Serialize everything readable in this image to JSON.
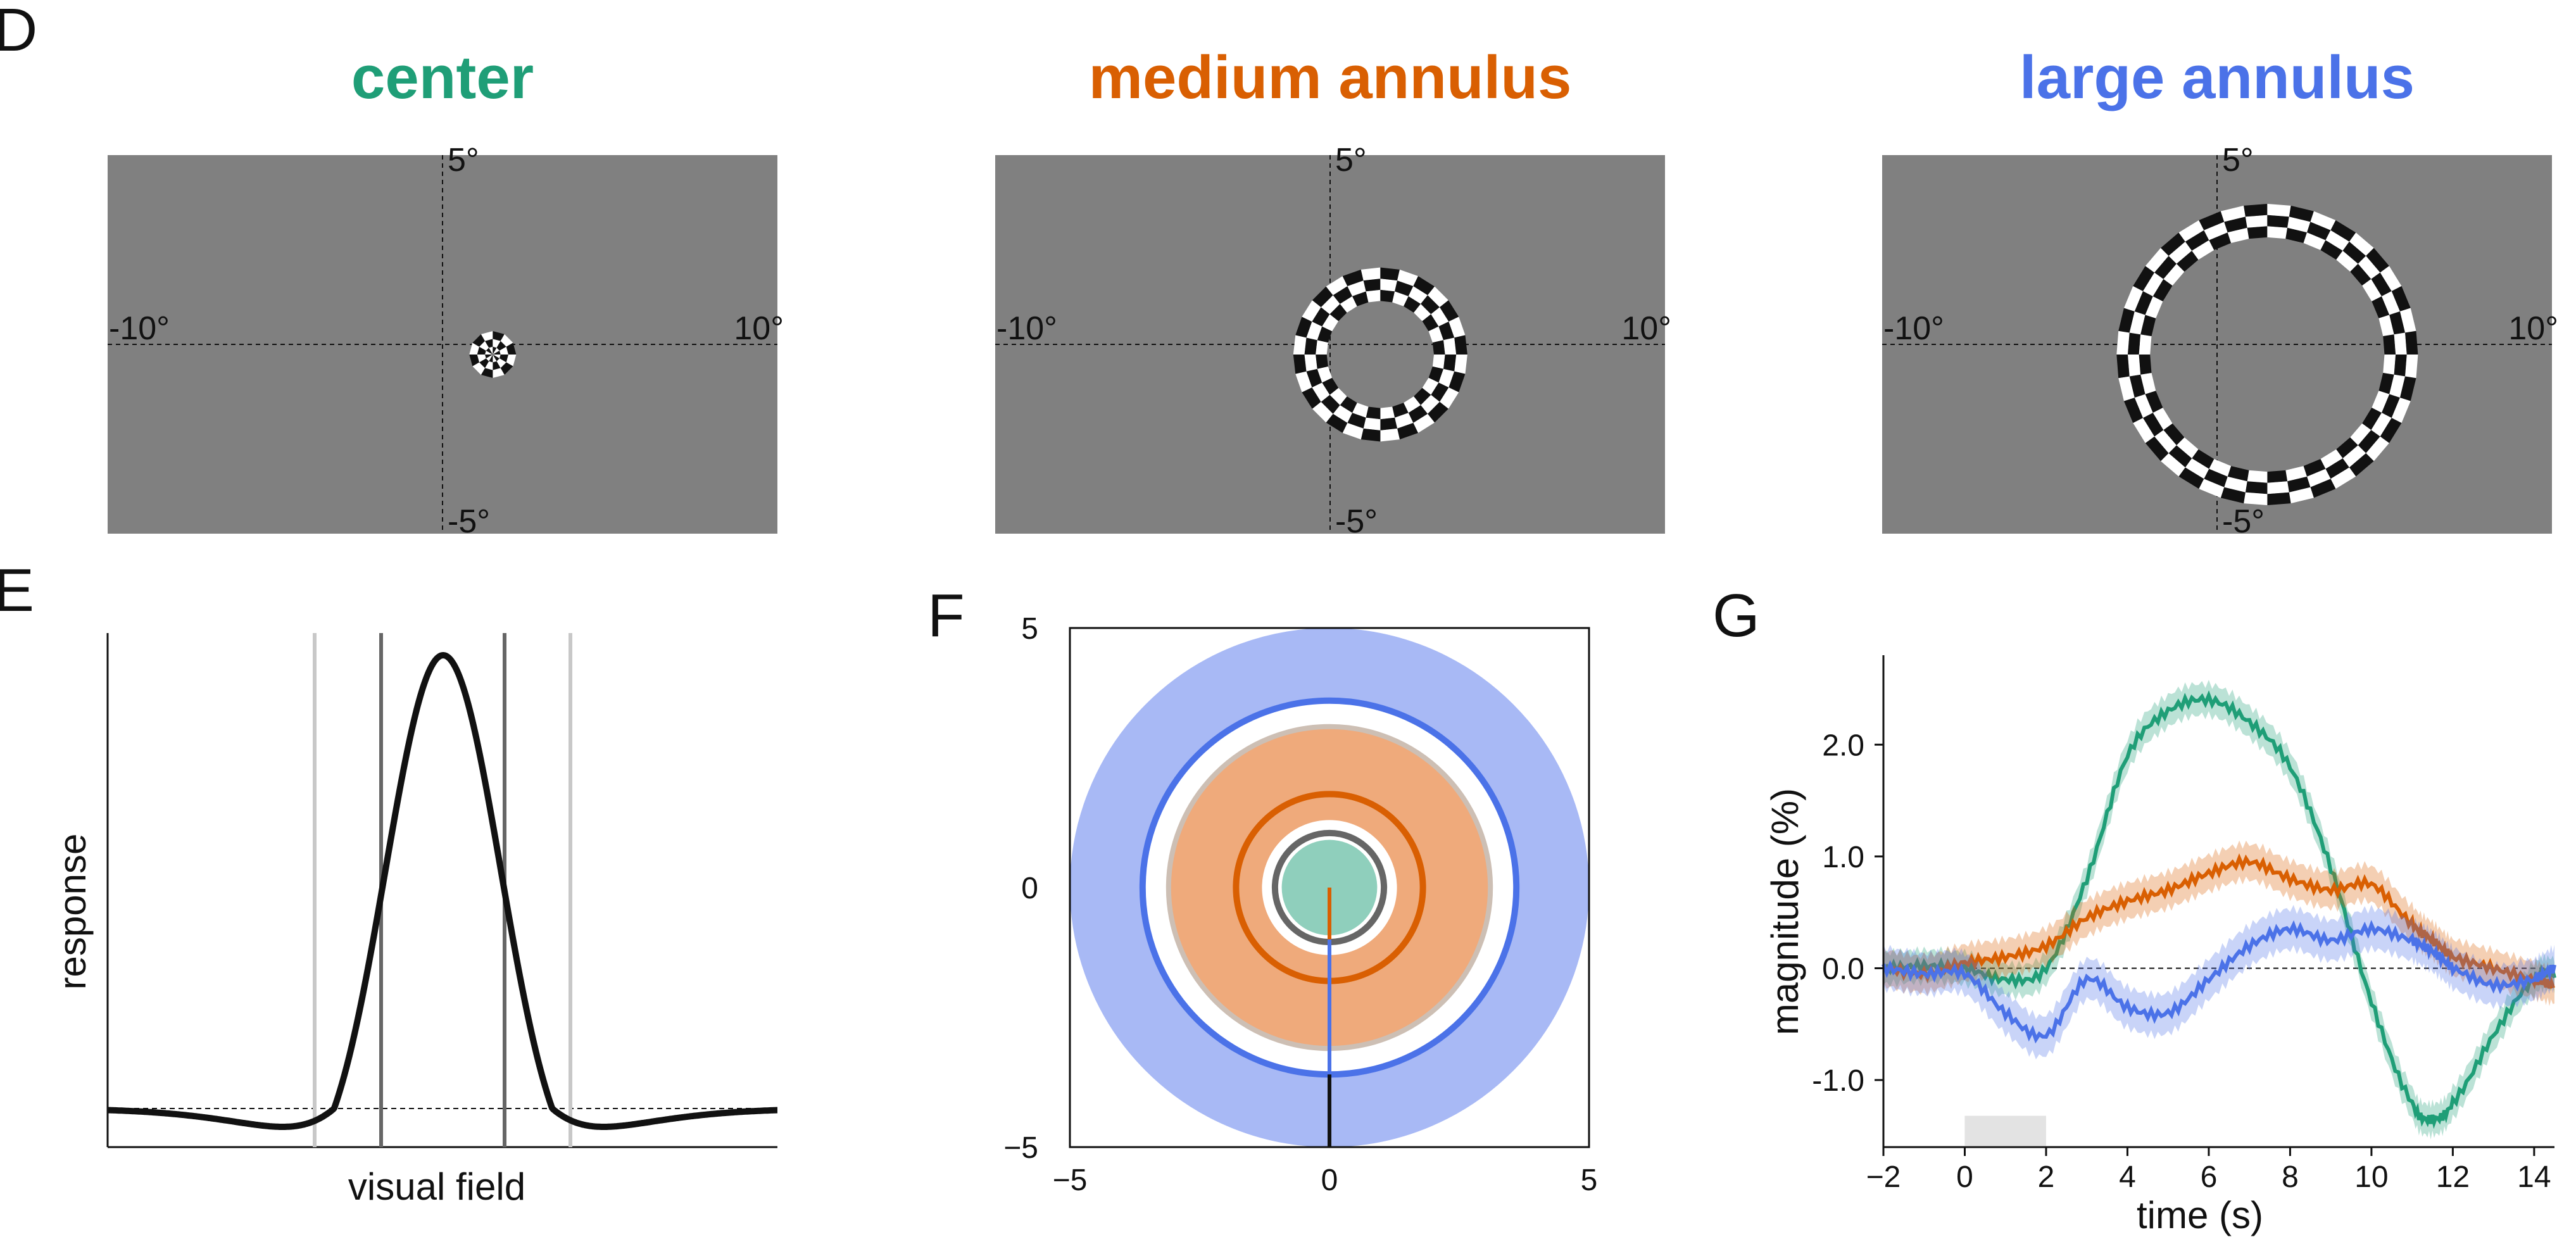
{
  "panels": {
    "D": {
      "letter": "D",
      "stimuli": [
        {
          "title": "center",
          "color": "#1f9e77",
          "inner_deg": 0.0,
          "outer_deg": 0.7
        },
        {
          "title": "medium annulus",
          "color": "#d95f02",
          "inner_deg": 1.6,
          "outer_deg": 2.6
        },
        {
          "title": "large annulus",
          "color": "#4b72e8",
          "inner_deg": 3.5,
          "outer_deg": 4.5
        }
      ],
      "center_offset_deg": 1.5,
      "labels": {
        "top": "5°",
        "bottom": "-5°",
        "left": "-10°",
        "right": "10°"
      },
      "xlim": [
        -10,
        10
      ],
      "ylim": [
        -5,
        5
      ]
    },
    "E": {
      "letter": "E",
      "xlabel": "visual field",
      "ylabel": "response"
    },
    "F": {
      "letter": "F",
      "xticks": [
        "−5",
        "0",
        "5"
      ],
      "yticks": [
        "5",
        "0",
        "−5"
      ]
    },
    "G": {
      "letter": "G",
      "xlabel": "time (s)",
      "ylabel": "magnitude (%)",
      "xticks": [
        "−2",
        "0",
        "2",
        "4",
        "6",
        "8",
        "10",
        "12",
        "14"
      ],
      "yticks": [
        "2.0",
        "1.0",
        "0.0",
        "-1.0"
      ]
    }
  },
  "chart_data": [
    {
      "type": "line",
      "panel": "E",
      "xlabel": "visual field",
      "ylabel": "response",
      "curve": "difference-of-gaussians",
      "vertical_lines_x": [
        -1.9,
        -1.0,
        1.0,
        1.9
      ]
    },
    {
      "type": "scatter",
      "panel": "F",
      "xlim": [
        -5,
        5
      ],
      "ylim": [
        -5,
        5
      ],
      "xticks": [
        -5,
        0,
        5
      ],
      "yticks": [
        -5,
        0,
        5
      ],
      "regions": [
        {
          "name": "large annulus",
          "inner_r": 3.6,
          "outer_r": 5.0,
          "color": "#a8b9f5"
        },
        {
          "name": "medium annulus",
          "inner_r": 1.3,
          "outer_r": 3.1,
          "color": "#efaa7b"
        },
        {
          "name": "center",
          "inner_r": 0.0,
          "outer_r": 0.95,
          "color": "#8fcfbc"
        }
      ],
      "rings_r": [
        3.6,
        1.8,
        1.05
      ],
      "radial_segments": [
        {
          "from": 0.0,
          "to": 1.0,
          "color": "#d95f02"
        },
        {
          "from": 1.0,
          "to": 3.6,
          "color": "#4b72e8"
        },
        {
          "from": 3.6,
          "to": 5.0,
          "color": "#111111"
        }
      ]
    },
    {
      "type": "line",
      "panel": "G",
      "xlabel": "time (s)",
      "ylabel": "magnitude (%)",
      "xlim": [
        -2,
        14.5
      ],
      "ylim": [
        -1.6,
        2.8
      ],
      "stimulus_window": [
        0,
        2
      ],
      "x": [
        -2,
        -1,
        0,
        1,
        2,
        3,
        4,
        5,
        6,
        7,
        8,
        9,
        10,
        11,
        11.5,
        12,
        13,
        14,
        14.5
      ],
      "series": [
        {
          "color": "#1f9e77",
          "values": [
            0.0,
            0.02,
            0.0,
            -0.1,
            0.0,
            0.8,
            1.9,
            2.3,
            2.4,
            2.2,
            1.8,
            0.9,
            -0.3,
            -1.2,
            -1.35,
            -1.2,
            -0.6,
            -0.1,
            -0.05
          ]
        },
        {
          "color": "#d95f02",
          "values": [
            0.0,
            -0.05,
            0.05,
            0.1,
            0.2,
            0.45,
            0.6,
            0.7,
            0.85,
            0.95,
            0.8,
            0.7,
            0.75,
            0.4,
            0.25,
            0.1,
            0.0,
            -0.1,
            -0.15
          ]
        },
        {
          "color": "#4b72e8",
          "values": [
            0.0,
            -0.05,
            -0.05,
            -0.4,
            -0.6,
            -0.1,
            -0.35,
            -0.4,
            -0.1,
            0.2,
            0.35,
            0.25,
            0.35,
            0.25,
            0.15,
            0.0,
            -0.15,
            -0.1,
            0.0
          ]
        }
      ]
    }
  ]
}
